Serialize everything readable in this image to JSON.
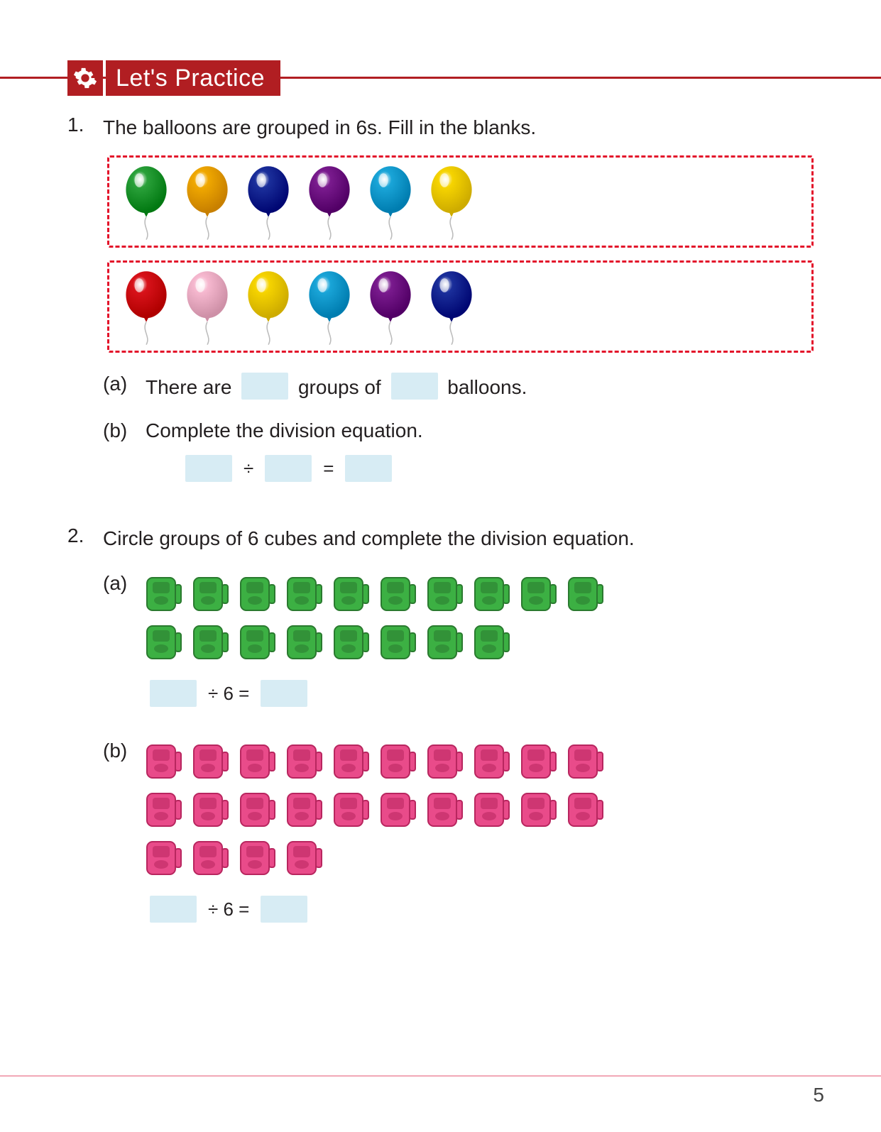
{
  "header": {
    "title": "Let's Practice"
  },
  "q1": {
    "num": "1.",
    "text": "The balloons are grouped in 6s. Fill in the blanks.",
    "balloon_row1_colors": [
      "#2aa13a",
      "#f0a800",
      "#1b2f9b",
      "#7a1b8e",
      "#1aa5d8",
      "#f6d400"
    ],
    "balloon_row2_colors": [
      "#d8121a",
      "#f6b8cf",
      "#f6d400",
      "#1aa5d8",
      "#7a1b8e",
      "#1b2f9b"
    ],
    "a_label": "(a)",
    "a_pre": "There are",
    "a_mid": "groups of",
    "a_post": "balloons.",
    "b_label": "(b)",
    "b_text": "Complete the division equation.",
    "divide_sym": "÷",
    "equals_sym": "="
  },
  "q2": {
    "num": "2.",
    "text": "Circle groups of 6 cubes and complete the division equation.",
    "a_label": "(a)",
    "a_cube_count": 18,
    "a_cube_color": "#3cb043",
    "a_cube_dark": "#2a7a2f",
    "a_eq": "÷ 6 =",
    "b_label": "(b)",
    "b_cube_count": 24,
    "b_cube_color": "#e94b8a",
    "b_cube_dark": "#b8265f",
    "b_eq": "÷ 6 ="
  },
  "page_number": "5",
  "blank_bg": "#d7ecf4",
  "dashed_border": "#e3122a",
  "header_bg": "#b11e22"
}
